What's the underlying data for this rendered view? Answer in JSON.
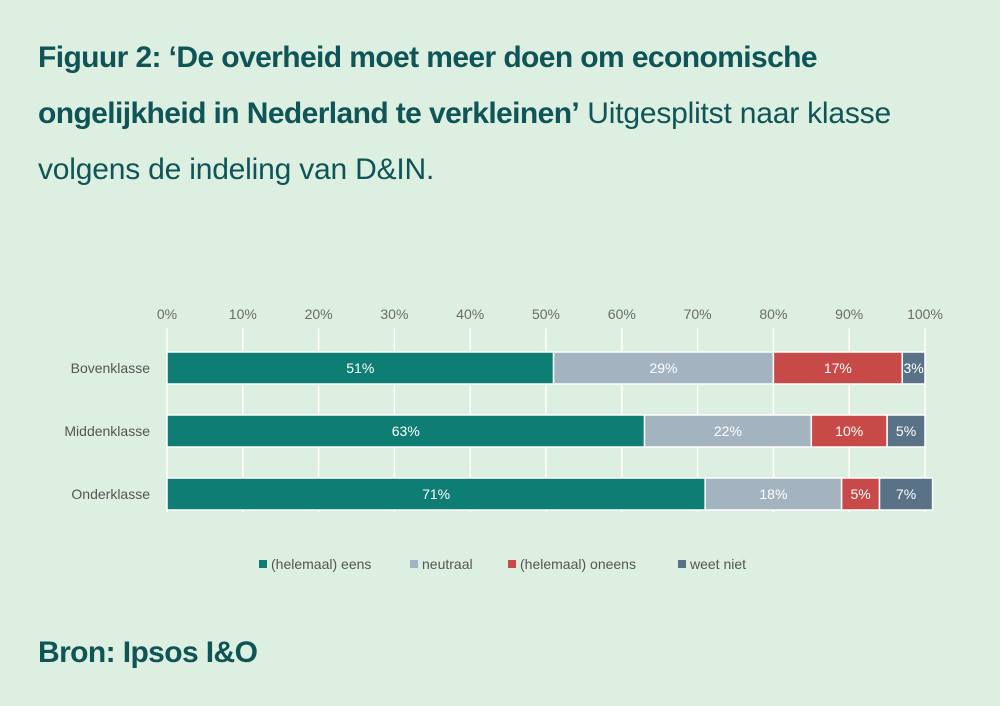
{
  "title": {
    "bold": "Figuur 2: ‘De overheid moet meer doen om economische ongelijkheid in Nederland te verkleinen’",
    "rest": " Uitgesplitst naar klasse volgens de indeling van D&IN."
  },
  "source": "Bron: Ipsos I&O",
  "chart_data": {
    "type": "bar",
    "orientation": "horizontal",
    "stacked": true,
    "categories": [
      "Bovenklasse",
      "Middenklasse",
      "Onderklasse"
    ],
    "xlim": [
      0,
      100
    ],
    "x_ticks": [
      "0%",
      "10%",
      "20%",
      "30%",
      "40%",
      "50%",
      "60%",
      "70%",
      "80%",
      "90%",
      "100%"
    ],
    "grid": true,
    "legend_position": "bottom",
    "series": [
      {
        "name": "(helemaal) eens",
        "color": "#0e7e74",
        "values": [
          51,
          63,
          71
        ],
        "labels": [
          "51%",
          "63%",
          "71%"
        ]
      },
      {
        "name": "neutraal",
        "color": "#a3b3bf",
        "values": [
          29,
          22,
          18
        ],
        "labels": [
          "29%",
          "22%",
          "18%"
        ]
      },
      {
        "name": "(helemaal) oneens",
        "color": "#c84a48",
        "values": [
          17,
          10,
          5
        ],
        "labels": [
          "17%",
          "10%",
          "5%"
        ]
      },
      {
        "name": "weet niet",
        "color": "#5a7287",
        "values": [
          3,
          5,
          7
        ],
        "labels": [
          "3%",
          "5%",
          "7%"
        ]
      }
    ]
  }
}
